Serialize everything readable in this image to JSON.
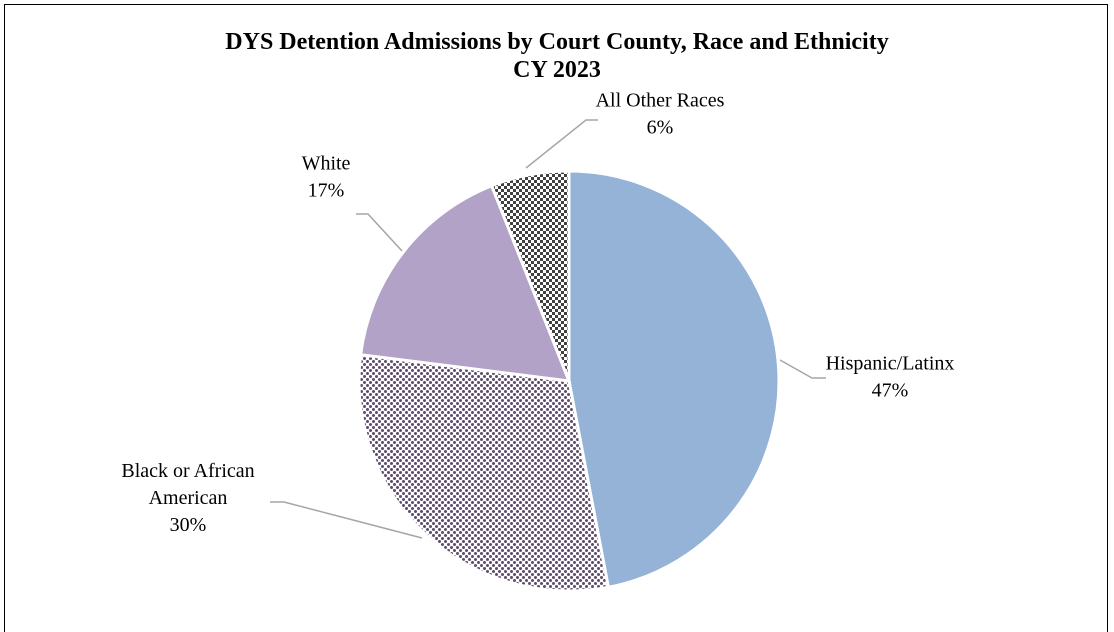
{
  "chart_data": {
    "type": "pie",
    "title": "DYS Detention Admissions by Court County, Race and Ethnicity",
    "subtitle": "CY 2023",
    "slices": [
      {
        "name": "Hispanic/Latinx",
        "label_lines": [
          "Hispanic/Latinx"
        ],
        "value": 47,
        "value_label": "47%",
        "color": "#95b3d7",
        "pattern": "none"
      },
      {
        "name": "Black or African American",
        "label_lines": [
          "Black or African",
          "American"
        ],
        "value": 30,
        "value_label": "30%",
        "color": "#5f4b6b",
        "pattern": "dots"
      },
      {
        "name": "White",
        "label_lines": [
          "White"
        ],
        "value": 17,
        "value_label": "17%",
        "color": "#b3a2c7",
        "pattern": "none"
      },
      {
        "name": "All Other Races",
        "label_lines": [
          "All Other Races"
        ],
        "value": 6,
        "value_label": "6%",
        "color": "#404040",
        "pattern": "checker"
      }
    ],
    "start_angle": "12 o'clock",
    "direction": "clockwise",
    "legend": "none",
    "data_labels": "outside with leader lines"
  }
}
